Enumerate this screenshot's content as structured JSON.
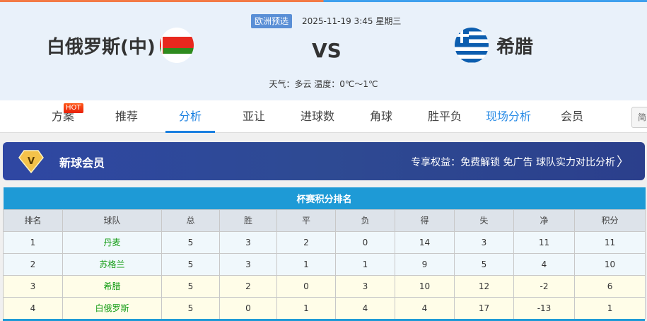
{
  "match": {
    "competition": "欧洲预选",
    "datetime": "2025-11-19 3:45 星期三",
    "home": "白俄罗斯(中)",
    "away": "希腊",
    "vs": "VS",
    "weather": "天气：多云 温度：0℃～1℃"
  },
  "nav": {
    "items": [
      "方案",
      "推荐",
      "分析",
      "亚让",
      "进球数",
      "角球",
      "胜平负",
      "现场分析",
      "会员"
    ],
    "active": "分析",
    "hot": "HOT",
    "lang": "简"
  },
  "banner": {
    "title": "新球会员",
    "benefits": "专享权益：免费解锁 免广告 球队实力对比分析",
    "chevron": "〉",
    "icon": "diamond-v-icon"
  },
  "standings": {
    "title": "杯赛积分排名",
    "headers": [
      "排名",
      "球队",
      "总",
      "胜",
      "平",
      "负",
      "得",
      "失",
      "净",
      "积分"
    ],
    "rows": [
      [
        "1",
        "丹麦",
        "5",
        "3",
        "2",
        "0",
        "14",
        "3",
        "11",
        "11"
      ],
      [
        "2",
        "苏格兰",
        "5",
        "3",
        "1",
        "1",
        "9",
        "5",
        "4",
        "10"
      ],
      [
        "3",
        "希腊",
        "5",
        "2",
        "0",
        "3",
        "10",
        "12",
        "-2",
        "6"
      ],
      [
        "4",
        "白俄罗斯",
        "5",
        "0",
        "1",
        "4",
        "4",
        "17",
        "-13",
        "1"
      ]
    ]
  },
  "colors": {
    "accent": "#1a7fe0",
    "table_header": "#1e9ad6",
    "team_name": "#139c13"
  }
}
